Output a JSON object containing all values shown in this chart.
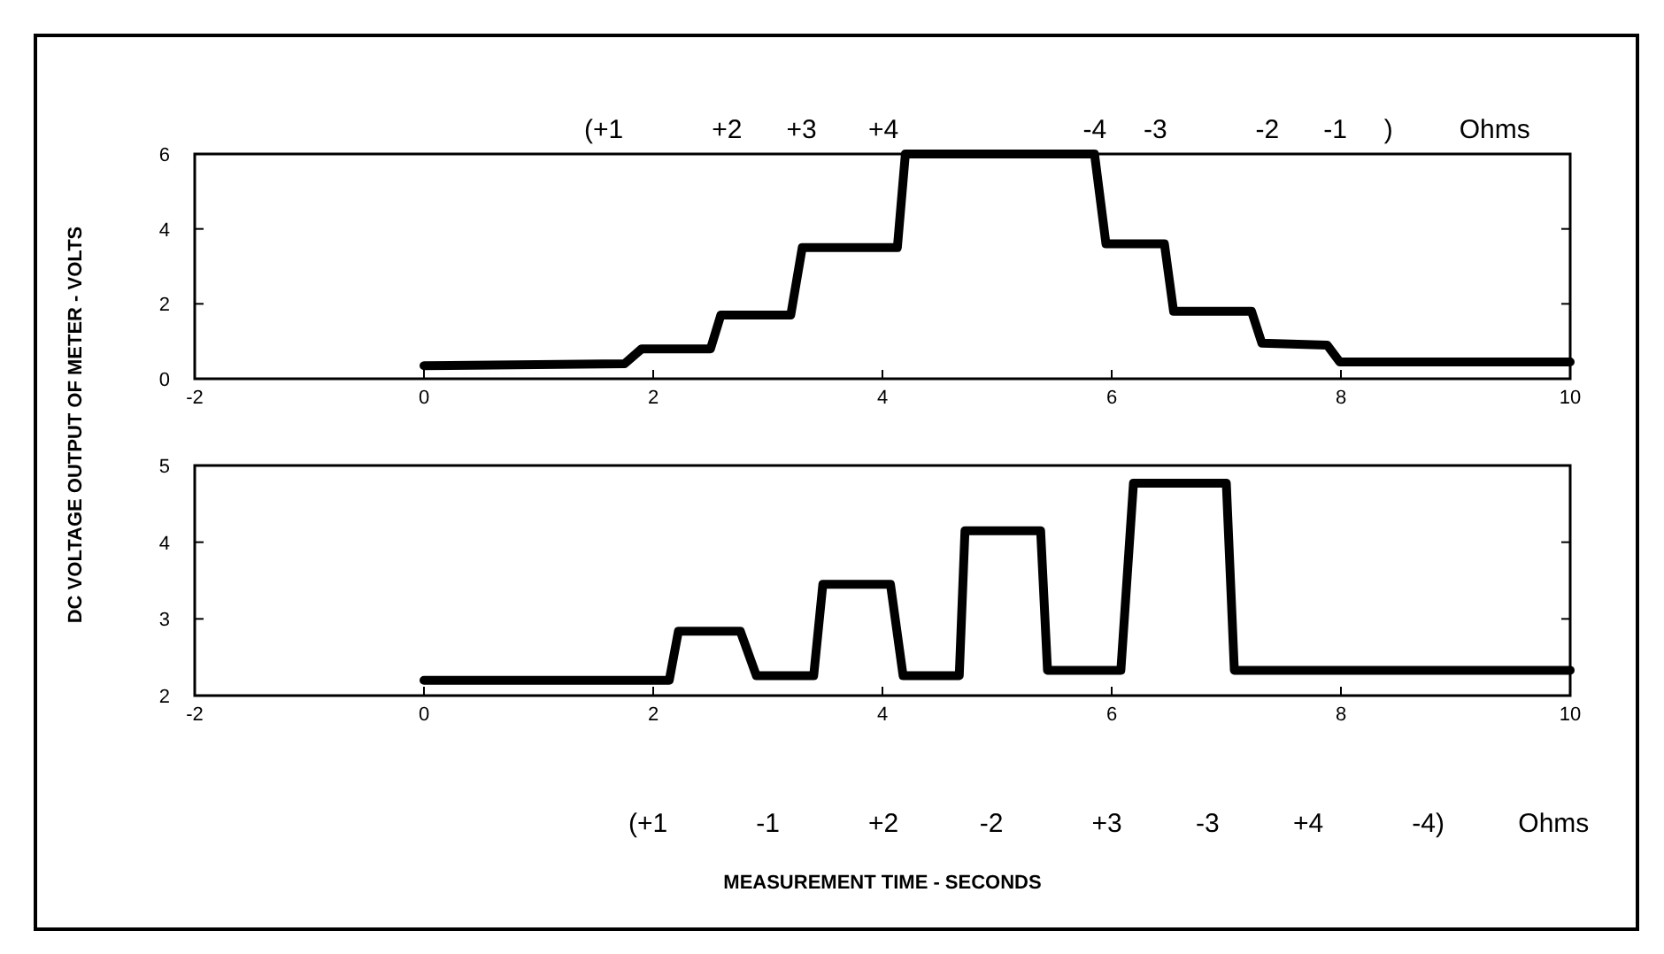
{
  "chart_data": [
    {
      "type": "line",
      "ylabel": "DC VOLTAGE OUTPUT OF METER - VOLTS",
      "xlim": [
        -2,
        10
      ],
      "xticks": [
        -2,
        0,
        2,
        4,
        6,
        8,
        10
      ],
      "ylim": [
        0,
        6
      ],
      "yticks": [
        0,
        2,
        4,
        6
      ],
      "grid": false,
      "legend": false,
      "marker": "none",
      "line_style": "solid",
      "series": [
        {
          "color": "#000000",
          "x": [
            0,
            1.75,
            1.9,
            2.5,
            2.59,
            3.2,
            3.3,
            4.13,
            4.2,
            5.85,
            5.95,
            6.46,
            6.54,
            7.22,
            7.31,
            7.88,
            7.99,
            10
          ],
          "values": [
            0.35,
            0.4,
            0.8,
            0.8,
            1.7,
            1.7,
            3.5,
            3.5,
            6,
            6,
            3.6,
            3.6,
            1.8,
            1.8,
            0.95,
            0.9,
            0.45,
            0.45
          ]
        }
      ],
      "annotations": [
        "(+1            +2      +3       +4                         -4     -3            -2      -1     )         Ohms"
      ]
    },
    {
      "type": "line",
      "xlabel": "MEASUREMENT TIME - SECONDS",
      "xlim": [
        -2,
        10
      ],
      "xticks": [
        -2,
        0,
        2,
        4,
        6,
        8,
        10
      ],
      "ylim": [
        2,
        5
      ],
      "yticks": [
        2,
        3,
        4,
        5
      ],
      "grid": false,
      "legend": false,
      "marker": "none",
      "line_style": "solid",
      "series": [
        {
          "color": "#000000",
          "x": [
            0,
            2.14,
            2.22,
            2.76,
            2.9,
            3.4,
            3.48,
            4.07,
            4.18,
            4.67,
            4.72,
            5.38,
            5.44,
            6.08,
            6.19,
            7.0,
            7.07,
            10
          ],
          "values": [
            2.2,
            2.2,
            2.84,
            2.84,
            2.26,
            2.26,
            3.45,
            3.45,
            2.26,
            2.26,
            4.15,
            4.15,
            2.33,
            2.33,
            4.77,
            4.77,
            2.33,
            2.33
          ]
        }
      ],
      "annotations": [
        "(+1            -1            +2           -2            +3          -3          +4            -4)          Ohms"
      ]
    }
  ]
}
